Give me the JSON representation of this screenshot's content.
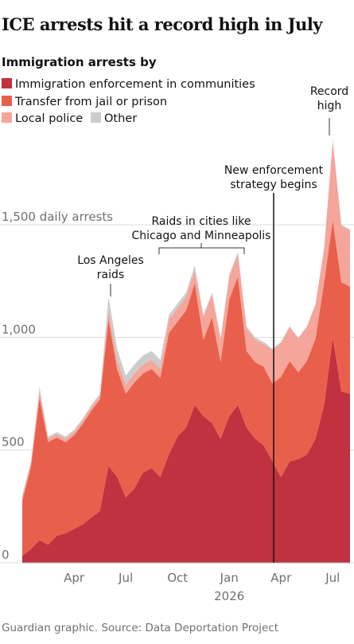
{
  "chart_data": {
    "type": "stacked_area",
    "title": "ICE arrests hit a record high in July",
    "subtitle": "Immigration arrests by",
    "source": "Guardian graphic. Source: Data Deportation Project",
    "categories": [
      null,
      null,
      null,
      null,
      null,
      null,
      "Apr",
      null,
      null,
      null,
      null,
      null,
      "Jul",
      null,
      null,
      null,
      null,
      null,
      "Oct",
      null,
      null,
      null,
      null,
      null,
      "Jan",
      null,
      null,
      null,
      null,
      null,
      "Apr",
      null,
      null,
      null,
      null,
      null,
      "Jul",
      null,
      null
    ],
    "year_label": "2026",
    "series": [
      {
        "name": "Immigration enforcement in communities",
        "color": "#c0323f",
        "values": [
          30,
          60,
          100,
          80,
          120,
          130,
          150,
          170,
          200,
          230,
          430,
          380,
          290,
          330,
          400,
          420,
          380,
          480,
          560,
          600,
          700,
          650,
          620,
          550,
          650,
          700,
          600,
          550,
          520,
          450,
          380,
          450,
          460,
          480,
          550,
          700,
          1000,
          760,
          750
        ]
      },
      {
        "name": "Transfer from jail or prison",
        "color": "#e8604c",
        "values": [
          245,
          365,
          630,
          455,
          435,
          405,
          415,
          445,
          475,
          495,
          650,
          480,
          460,
          470,
          440,
          440,
          440,
          540,
          510,
          520,
          540,
          340,
          470,
          340,
          520,
          570,
          340,
          340,
          350,
          345,
          445,
          445,
          385,
          415,
          445,
          545,
          520,
          485,
          475
        ]
      },
      {
        "name": "Local police",
        "color": "#f5a59a",
        "values": [
          15,
          15,
          30,
          15,
          15,
          15,
          15,
          15,
          15,
          15,
          40,
          40,
          40,
          40,
          40,
          40,
          40,
          60,
          60,
          60,
          60,
          100,
          100,
          100,
          100,
          100,
          100,
          100,
          100,
          150,
          150,
          150,
          150,
          150,
          150,
          150,
          350,
          250,
          250
        ]
      },
      {
        "name": "Other",
        "color": "#cccccc",
        "values": [
          10,
          10,
          20,
          10,
          10,
          10,
          10,
          10,
          10,
          10,
          60,
          50,
          40,
          40,
          40,
          40,
          40,
          20,
          20,
          20,
          20,
          10,
          10,
          10,
          10,
          10,
          10,
          10,
          10,
          5,
          5,
          5,
          5,
          5,
          5,
          5,
          10,
          5,
          5
        ]
      }
    ],
    "ylim": [
      0,
      1900
    ],
    "yticks": [
      0,
      500,
      {
        "value": 1000,
        "label": "1,000"
      },
      {
        "value": 1500,
        "label": "1,500 daily arrests"
      }
    ],
    "grid": true,
    "annotations": {
      "los_angeles": [
        "Los Angeles",
        "raids"
      ],
      "raids_cities": [
        "Raids in cities like",
        "Chicago and Minneapolis"
      ],
      "strategy": [
        "New enforcement",
        "strategy begins"
      ],
      "record": [
        "Record",
        "high"
      ]
    }
  }
}
